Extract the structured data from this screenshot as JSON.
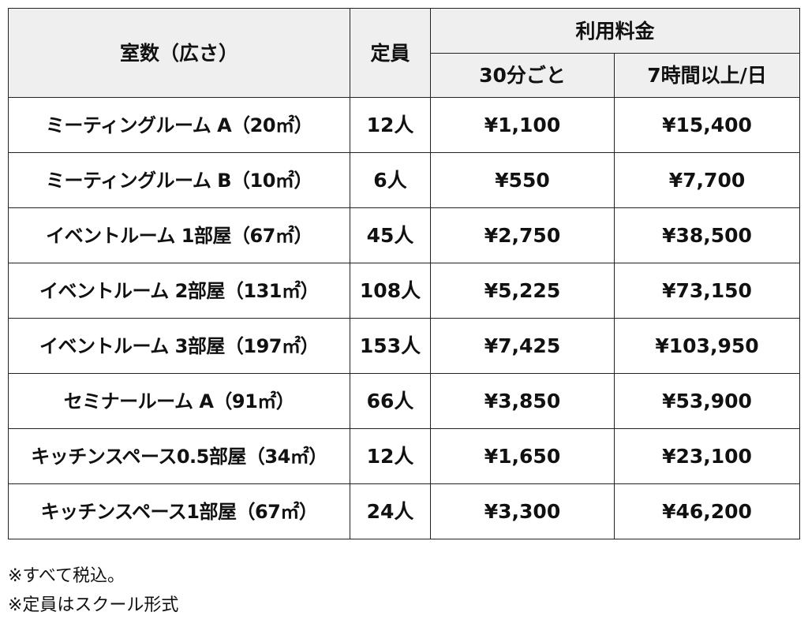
{
  "table": {
    "headers": {
      "rooms": "室数（広さ）",
      "capacity": "定員",
      "fee": "利用料金",
      "per30": "30分ごと",
      "daily": "7時間以上/日"
    },
    "rows": [
      {
        "room": "ミーティングルーム A（20㎡）",
        "capacity": "12人",
        "per30": "¥1,100",
        "daily": "¥15,400"
      },
      {
        "room": "ミーティングルーム B（10㎡）",
        "capacity": "6人",
        "per30": "¥550",
        "daily": "¥7,700"
      },
      {
        "room": "イベントルーム 1部屋（67㎡）",
        "capacity": "45人",
        "per30": "¥2,750",
        "daily": "¥38,500"
      },
      {
        "room": "イベントルーム 2部屋（131㎡）",
        "capacity": "108人",
        "per30": "¥5,225",
        "daily": "¥73,150"
      },
      {
        "room": "イベントルーム 3部屋（197㎡）",
        "capacity": "153人",
        "per30": "¥7,425",
        "daily": "¥103,950"
      },
      {
        "room": "セミナールーム A（91㎡）",
        "capacity": "66人",
        "per30": "¥3,850",
        "daily": "¥53,900"
      },
      {
        "room": "キッチンスペース0.5部屋（34㎡）",
        "capacity": "12人",
        "per30": "¥1,650",
        "daily": "¥23,100"
      },
      {
        "room": "キッチンスペース1部屋（67㎡）",
        "capacity": "24人",
        "per30": "¥3,300",
        "daily": "¥46,200"
      }
    ]
  },
  "notes": [
    "※すべて税込。",
    "※定員はスクール形式"
  ],
  "colors": {
    "header_bg": "#efefef",
    "border": "#222222",
    "text": "#111111"
  }
}
